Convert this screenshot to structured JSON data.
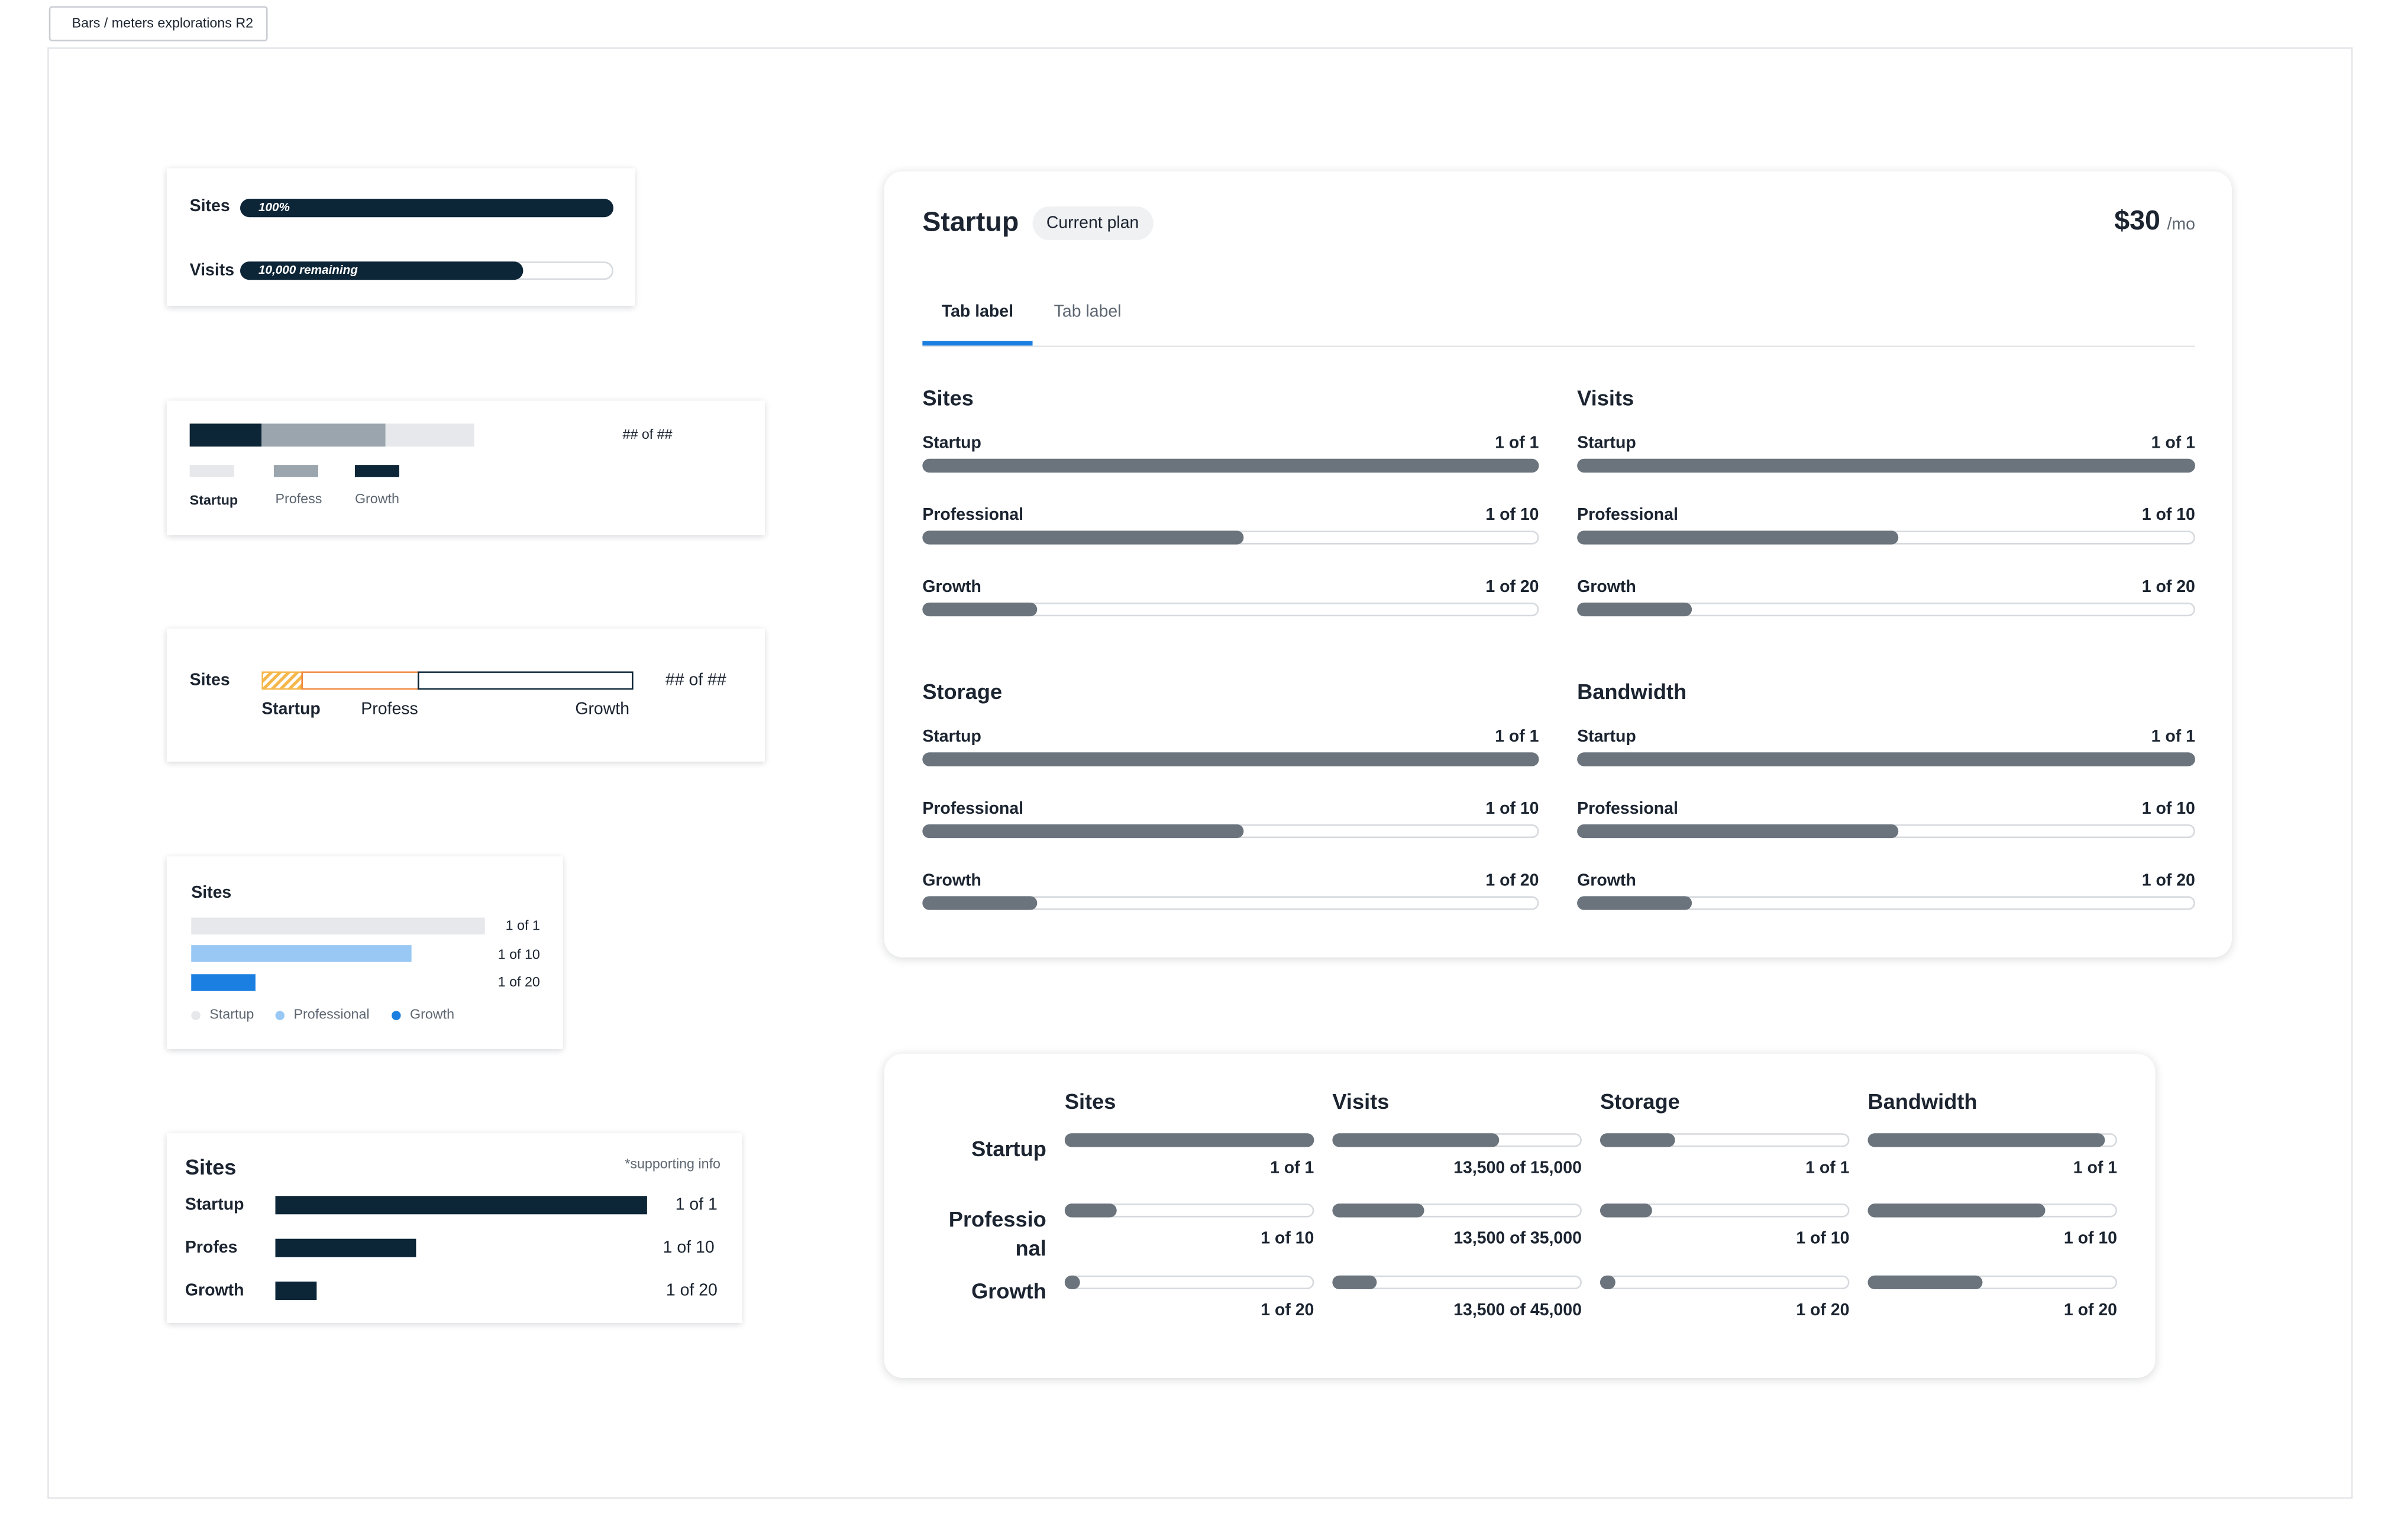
{
  "frame_label": "Bars / meters explorations R2",
  "card1": {
    "rows": [
      {
        "label": "Sites",
        "bar_text": "100%",
        "fill_percent": 100
      },
      {
        "label": "Visits",
        "bar_text": "10,000 remaining",
        "fill_percent": 76
      }
    ]
  },
  "card2": {
    "counter": "## of ##",
    "legend": [
      {
        "label": "Startup",
        "color": "#e6e8eb"
      },
      {
        "label": "Profess",
        "color": "#9aa5ad"
      },
      {
        "label": "Growth",
        "color": "#0c2537"
      }
    ]
  },
  "card3": {
    "label": "Sites",
    "counter": "## of ##",
    "segments": [
      "Startup",
      "Profess",
      "Growth"
    ],
    "colors": {
      "startup": "#f5b74a",
      "profess": "#f0883e",
      "growth": "#0c2537"
    }
  },
  "card4": {
    "title": "Sites",
    "rows": [
      {
        "value": "1 of 1",
        "color": "#e6e8eb",
        "fill_fraction": 1.0
      },
      {
        "value": "1 of 10",
        "color": "#98c8f3",
        "fill_fraction": 0.75
      },
      {
        "value": "1 of 20",
        "color": "#1a7fe0",
        "fill_fraction": 0.22
      }
    ],
    "legend": [
      {
        "label": "Startup",
        "color": "#e6e8eb"
      },
      {
        "label": "Professional",
        "color": "#98c8f3"
      },
      {
        "label": "Growth",
        "color": "#1a7fe0"
      }
    ]
  },
  "card5": {
    "title": "Sites",
    "supporting": "*supporting info",
    "rows": [
      {
        "label": "Startup",
        "value": "1 of 1",
        "fill_fraction": 1.0
      },
      {
        "label": "Profes",
        "value": "1 of 10",
        "fill_fraction": 0.38
      },
      {
        "label": "Growth",
        "value": "1 of 20",
        "fill_fraction": 0.11
      }
    ],
    "color": "#0c2537"
  },
  "plan": {
    "name": "Startup",
    "badge": "Current plan",
    "price": "$30",
    "period": "/mo",
    "tabs": [
      "Tab label",
      "Tab label"
    ],
    "accent": "#1a7fe0",
    "sections": [
      {
        "title": "Sites",
        "rows": [
          {
            "label": "Startup",
            "value": "1 of 1",
            "fill_fraction": 1.0
          },
          {
            "label": "Professional",
            "value": "1 of 10",
            "fill_fraction": 0.52
          },
          {
            "label": "Growth",
            "value": "1 of 20",
            "fill_fraction": 0.185
          }
        ]
      },
      {
        "title": "Visits",
        "rows": [
          {
            "label": "Startup",
            "value": "1 of 1",
            "fill_fraction": 1.0
          },
          {
            "label": "Professional",
            "value": "1 of 10",
            "fill_fraction": 0.52
          },
          {
            "label": "Growth",
            "value": "1 of 20",
            "fill_fraction": 0.185
          }
        ]
      },
      {
        "title": "Storage",
        "rows": [
          {
            "label": "Startup",
            "value": "1 of 1",
            "fill_fraction": 1.0
          },
          {
            "label": "Professional",
            "value": "1 of 10",
            "fill_fraction": 0.52
          },
          {
            "label": "Growth",
            "value": "1 of 20",
            "fill_fraction": 0.185
          }
        ]
      },
      {
        "title": "Bandwidth",
        "rows": [
          {
            "label": "Startup",
            "value": "1 of 1",
            "fill_fraction": 1.0
          },
          {
            "label": "Professional",
            "value": "1 of 10",
            "fill_fraction": 0.52
          },
          {
            "label": "Growth",
            "value": "1 of 20",
            "fill_fraction": 0.185
          }
        ]
      }
    ]
  },
  "matrix": {
    "columns": [
      "Sites",
      "Visits",
      "Storage",
      "Bandwidth"
    ],
    "rows": [
      {
        "label_lines": [
          "Startup"
        ],
        "cells": [
          {
            "value": "1 of 1",
            "fill_fraction": 1.0
          },
          {
            "value": "13,500 of 15,000",
            "fill_fraction": 0.67
          },
          {
            "value": "1 of 1",
            "fill_fraction": 0.3
          },
          {
            "value": "1 of 1",
            "fill_fraction": 0.95
          }
        ]
      },
      {
        "label_lines": [
          "Professio",
          "nal"
        ],
        "cells": [
          {
            "value": "1 of 10",
            "fill_fraction": 0.21
          },
          {
            "value": "13,500 of 35,000",
            "fill_fraction": 0.37
          },
          {
            "value": "1 of 10",
            "fill_fraction": 0.21
          },
          {
            "value": "1 of 10",
            "fill_fraction": 0.71
          }
        ]
      },
      {
        "label_lines": [
          "Growth"
        ],
        "cells": [
          {
            "value": "1 of 20",
            "fill_fraction": 0.06
          },
          {
            "value": "13,500 of 45,000",
            "fill_fraction": 0.18
          },
          {
            "value": "1 of 20",
            "fill_fraction": 0.06
          },
          {
            "value": "1 of 20",
            "fill_fraction": 0.46
          }
        ]
      }
    ]
  }
}
